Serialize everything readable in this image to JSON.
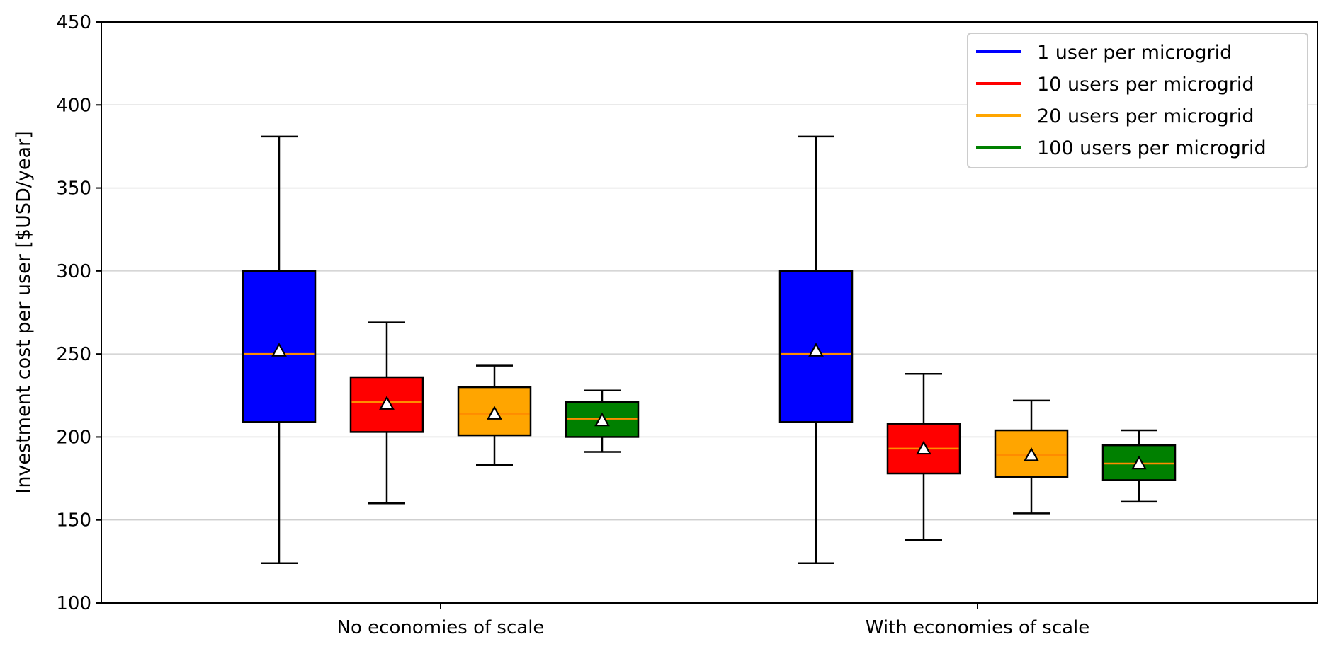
{
  "chart_data": {
    "type": "box",
    "title": "",
    "xlabel": "",
    "ylabel": "Investment cost per user [$USD/year]",
    "ylim": [
      100,
      450
    ],
    "yticks": [
      100,
      150,
      200,
      250,
      300,
      350,
      400,
      450
    ],
    "grid": "horizontal",
    "legend_position": "top-right",
    "categories": [
      "No economies of scale",
      "With economies of scale"
    ],
    "series": [
      {
        "name": "1 user per microgrid",
        "color": "#0000ff",
        "stats": [
          {
            "whisker_low": 124,
            "q1": 209,
            "median": 250,
            "q3": 300,
            "whisker_high": 381,
            "mean": 252
          },
          {
            "whisker_low": 124,
            "q1": 209,
            "median": 250,
            "q3": 300,
            "whisker_high": 381,
            "mean": 252
          }
        ]
      },
      {
        "name": "10 users per microgrid",
        "color": "#ff0000",
        "stats": [
          {
            "whisker_low": 160,
            "q1": 203,
            "median": 221,
            "q3": 236,
            "whisker_high": 269,
            "mean": 220
          },
          {
            "whisker_low": 138,
            "q1": 178,
            "median": 193,
            "q3": 208,
            "whisker_high": 238,
            "mean": 193
          }
        ]
      },
      {
        "name": "20 users per microgrid",
        "color": "#ffa500",
        "stats": [
          {
            "whisker_low": 183,
            "q1": 201,
            "median": 214,
            "q3": 230,
            "whisker_high": 243,
            "mean": 214
          },
          {
            "whisker_low": 154,
            "q1": 176,
            "median": 189,
            "q3": 204,
            "whisker_high": 222,
            "mean": 189
          }
        ]
      },
      {
        "name": "100 users per microgrid",
        "color": "#008000",
        "stats": [
          {
            "whisker_low": 191,
            "q1": 200,
            "median": 211,
            "q3": 221,
            "whisker_high": 228,
            "mean": 210
          },
          {
            "whisker_low": 161,
            "q1": 174,
            "median": 184,
            "q3": 195,
            "whisker_high": 204,
            "mean": 184
          }
        ]
      }
    ],
    "median_color": "#ff8c00",
    "mean_marker": "triangle"
  }
}
